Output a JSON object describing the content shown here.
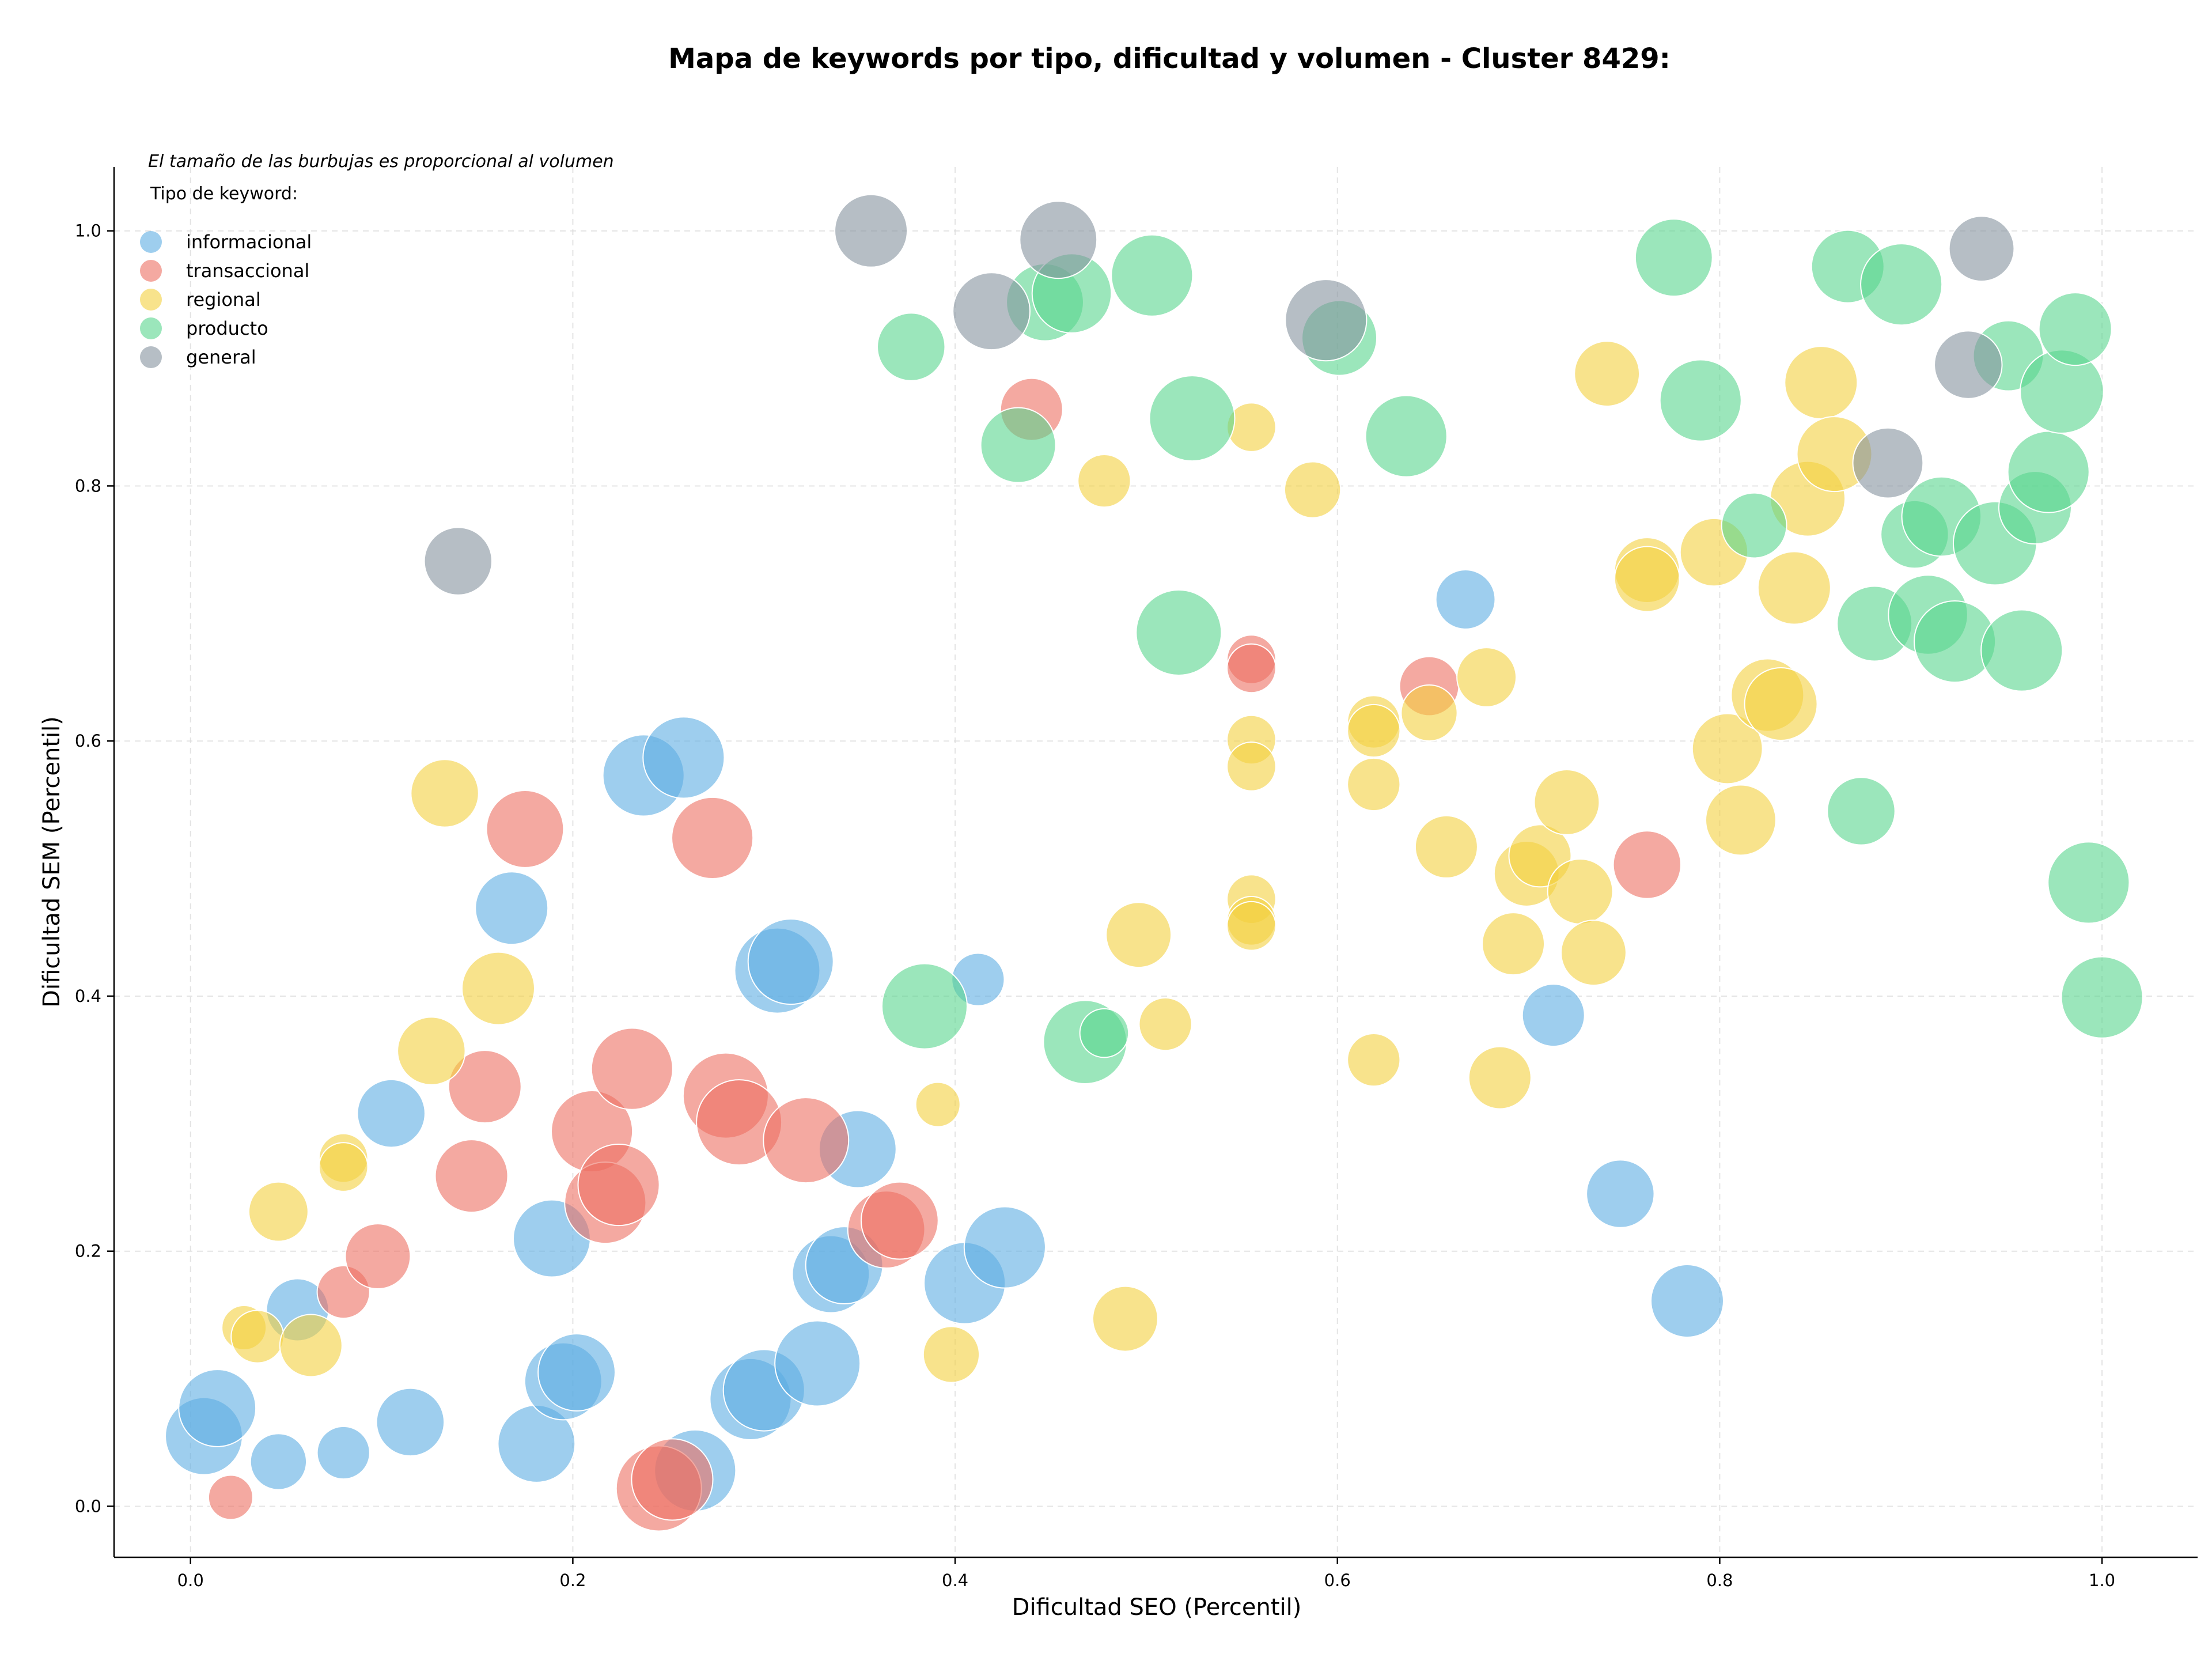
{
  "chart_data": {
    "type": "scatter",
    "title": "Mapa de keywords por tipo, dificultad y volumen - Cluster 8429:",
    "xlabel": "Dificultad SEO (Percentil)",
    "ylabel": "Dificultad SEM (Percentil)",
    "xlim": [
      -0.04,
      1.05
    ],
    "ylim": [
      -0.04,
      1.05
    ],
    "x_ticks": [
      0.0,
      0.2,
      0.4,
      0.6,
      0.8,
      1.0
    ],
    "y_ticks": [
      0.0,
      0.2,
      0.4,
      0.6,
      0.8,
      1.0
    ],
    "x_tick_labels": [
      "0.0",
      "0.2",
      "0.4",
      "0.6",
      "0.8",
      "1.0"
    ],
    "y_tick_labels": [
      "0.0",
      "0.2",
      "0.4",
      "0.6",
      "0.8",
      "1.0"
    ],
    "grid": true,
    "annotation": "El tamaño de las burbujas es proporcional al volumen",
    "legend": {
      "title": "Tipo de keyword:",
      "position": "top-left"
    },
    "size_encoding": "volume (relative, 1-10)",
    "series": [
      {
        "name": "informacional",
        "color": "#5DADE2",
        "points": [
          {
            "x": 0.007,
            "y": 0.055,
            "s": 7
          },
          {
            "x": 0.014,
            "y": 0.077,
            "s": 7
          },
          {
            "x": 0.046,
            "y": 0.035,
            "s": 3
          },
          {
            "x": 0.056,
            "y": 0.154,
            "s": 4
          },
          {
            "x": 0.08,
            "y": 0.042,
            "s": 2.5
          },
          {
            "x": 0.105,
            "y": 0.308,
            "s": 5
          },
          {
            "x": 0.115,
            "y": 0.066,
            "s": 5
          },
          {
            "x": 0.168,
            "y": 0.469,
            "s": 6
          },
          {
            "x": 0.181,
            "y": 0.049,
            "s": 7
          },
          {
            "x": 0.189,
            "y": 0.21,
            "s": 7
          },
          {
            "x": 0.195,
            "y": 0.098,
            "s": 7
          },
          {
            "x": 0.202,
            "y": 0.105,
            "s": 7
          },
          {
            "x": 0.237,
            "y": 0.573,
            "s": 8
          },
          {
            "x": 0.258,
            "y": 0.587,
            "s": 8
          },
          {
            "x": 0.264,
            "y": 0.028,
            "s": 8
          },
          {
            "x": 0.293,
            "y": 0.084,
            "s": 8
          },
          {
            "x": 0.3,
            "y": 0.091,
            "s": 8
          },
          {
            "x": 0.307,
            "y": 0.42,
            "s": 9
          },
          {
            "x": 0.314,
            "y": 0.427,
            "s": 9
          },
          {
            "x": 0.328,
            "y": 0.112,
            "s": 9
          },
          {
            "x": 0.335,
            "y": 0.182,
            "s": 7
          },
          {
            "x": 0.342,
            "y": 0.189,
            "s": 7
          },
          {
            "x": 0.349,
            "y": 0.28,
            "s": 7
          },
          {
            "x": 0.405,
            "y": 0.175,
            "s": 8
          },
          {
            "x": 0.412,
            "y": 0.413,
            "s": 2.5
          },
          {
            "x": 0.426,
            "y": 0.203,
            "s": 8
          },
          {
            "x": 0.667,
            "y": 0.711,
            "s": 3.5
          },
          {
            "x": 0.713,
            "y": 0.385,
            "s": 4
          },
          {
            "x": 0.748,
            "y": 0.245,
            "s": 5
          },
          {
            "x": 0.783,
            "y": 0.161,
            "s": 6
          }
        ]
      },
      {
        "name": "transaccional",
        "color": "#EC7063",
        "points": [
          {
            "x": 0.021,
            "y": 0.007,
            "s": 1.5
          },
          {
            "x": 0.08,
            "y": 0.168,
            "s": 2.5
          },
          {
            "x": 0.098,
            "y": 0.196,
            "s": 4.5
          },
          {
            "x": 0.147,
            "y": 0.259,
            "s": 6
          },
          {
            "x": 0.154,
            "y": 0.329,
            "s": 6
          },
          {
            "x": 0.175,
            "y": 0.531,
            "s": 7
          },
          {
            "x": 0.21,
            "y": 0.294,
            "s": 8
          },
          {
            "x": 0.217,
            "y": 0.238,
            "s": 8
          },
          {
            "x": 0.224,
            "y": 0.252,
            "s": 8
          },
          {
            "x": 0.231,
            "y": 0.343,
            "s": 8
          },
          {
            "x": 0.245,
            "y": 0.014,
            "s": 9
          },
          {
            "x": 0.252,
            "y": 0.021,
            "s": 8
          },
          {
            "x": 0.273,
            "y": 0.524,
            "s": 8
          },
          {
            "x": 0.28,
            "y": 0.322,
            "s": 9
          },
          {
            "x": 0.287,
            "y": 0.301,
            "s": 9
          },
          {
            "x": 0.322,
            "y": 0.287,
            "s": 9
          },
          {
            "x": 0.364,
            "y": 0.217,
            "s": 7
          },
          {
            "x": 0.371,
            "y": 0.224,
            "s": 7
          },
          {
            "x": 0.44,
            "y": 0.86,
            "s": 4
          },
          {
            "x": 0.555,
            "y": 0.664,
            "s": 2
          },
          {
            "x": 0.555,
            "y": 0.657,
            "s": 2
          },
          {
            "x": 0.648,
            "y": 0.643,
            "s": 3.5
          },
          {
            "x": 0.762,
            "y": 0.503,
            "s": 5
          }
        ]
      },
      {
        "name": "regional",
        "color": "#F4D03F",
        "points": [
          {
            "x": 0.028,
            "y": 0.14,
            "s": 1.5
          },
          {
            "x": 0.035,
            "y": 0.133,
            "s": 2.5
          },
          {
            "x": 0.046,
            "y": 0.231,
            "s": 3.5
          },
          {
            "x": 0.063,
            "y": 0.126,
            "s": 4
          },
          {
            "x": 0.08,
            "y": 0.273,
            "s": 2
          },
          {
            "x": 0.08,
            "y": 0.266,
            "s": 2
          },
          {
            "x": 0.126,
            "y": 0.357,
            "s": 5
          },
          {
            "x": 0.133,
            "y": 0.559,
            "s": 5
          },
          {
            "x": 0.161,
            "y": 0.406,
            "s": 6
          },
          {
            "x": 0.391,
            "y": 0.315,
            "s": 1.5
          },
          {
            "x": 0.398,
            "y": 0.119,
            "s": 3
          },
          {
            "x": 0.478,
            "y": 0.804,
            "s": 2.5
          },
          {
            "x": 0.489,
            "y": 0.147,
            "s": 4.5
          },
          {
            "x": 0.496,
            "y": 0.448,
            "s": 4.5
          },
          {
            "x": 0.51,
            "y": 0.378,
            "s": 2.5
          },
          {
            "x": 0.555,
            "y": 0.846,
            "s": 2
          },
          {
            "x": 0.555,
            "y": 0.601,
            "s": 2
          },
          {
            "x": 0.555,
            "y": 0.58,
            "s": 2
          },
          {
            "x": 0.555,
            "y": 0.476,
            "s": 2
          },
          {
            "x": 0.555,
            "y": 0.459,
            "s": 2
          },
          {
            "x": 0.555,
            "y": 0.455,
            "s": 2
          },
          {
            "x": 0.587,
            "y": 0.797,
            "s": 3
          },
          {
            "x": 0.619,
            "y": 0.615,
            "s": 2.5
          },
          {
            "x": 0.619,
            "y": 0.608,
            "s": 2.5
          },
          {
            "x": 0.619,
            "y": 0.566,
            "s": 2.5
          },
          {
            "x": 0.619,
            "y": 0.35,
            "s": 2.5
          },
          {
            "x": 0.648,
            "y": 0.622,
            "s": 3
          },
          {
            "x": 0.657,
            "y": 0.517,
            "s": 4
          },
          {
            "x": 0.678,
            "y": 0.65,
            "s": 3.5
          },
          {
            "x": 0.685,
            "y": 0.336,
            "s": 4
          },
          {
            "x": 0.692,
            "y": 0.441,
            "s": 4
          },
          {
            "x": 0.699,
            "y": 0.496,
            "s": 4.5
          },
          {
            "x": 0.706,
            "y": 0.51,
            "s": 4
          },
          {
            "x": 0.72,
            "y": 0.552,
            "s": 4.5
          },
          {
            "x": 0.727,
            "y": 0.482,
            "s": 4.5
          },
          {
            "x": 0.734,
            "y": 0.434,
            "s": 4.5
          },
          {
            "x": 0.741,
            "y": 0.888,
            "s": 4.5
          },
          {
            "x": 0.762,
            "y": 0.734,
            "s": 4.5
          },
          {
            "x": 0.762,
            "y": 0.727,
            "s": 4.5
          },
          {
            "x": 0.797,
            "y": 0.748,
            "s": 5
          },
          {
            "x": 0.804,
            "y": 0.594,
            "s": 5.5
          },
          {
            "x": 0.811,
            "y": 0.538,
            "s": 5.5
          },
          {
            "x": 0.825,
            "y": 0.636,
            "s": 6
          },
          {
            "x": 0.832,
            "y": 0.629,
            "s": 6
          },
          {
            "x": 0.839,
            "y": 0.72,
            "s": 6
          },
          {
            "x": 0.846,
            "y": 0.79,
            "s": 6.5
          },
          {
            "x": 0.853,
            "y": 0.881,
            "s": 6
          },
          {
            "x": 0.86,
            "y": 0.825,
            "s": 6.5
          }
        ]
      },
      {
        "name": "producto",
        "color": "#58D68D",
        "points": [
          {
            "x": 0.377,
            "y": 0.909,
            "s": 5
          },
          {
            "x": 0.384,
            "y": 0.392,
            "s": 9
          },
          {
            "x": 0.433,
            "y": 0.832,
            "s": 6.5
          },
          {
            "x": 0.447,
            "y": 0.944,
            "s": 7
          },
          {
            "x": 0.461,
            "y": 0.951,
            "s": 7.5
          },
          {
            "x": 0.468,
            "y": 0.364,
            "s": 8.5
          },
          {
            "x": 0.478,
            "y": 0.371,
            "s": 2
          },
          {
            "x": 0.503,
            "y": 0.965,
            "s": 8
          },
          {
            "x": 0.517,
            "y": 0.685,
            "s": 9
          },
          {
            "x": 0.524,
            "y": 0.853,
            "s": 9
          },
          {
            "x": 0.601,
            "y": 0.916,
            "s": 6.5
          },
          {
            "x": 0.636,
            "y": 0.839,
            "s": 8
          },
          {
            "x": 0.776,
            "y": 0.979,
            "s": 7
          },
          {
            "x": 0.79,
            "y": 0.867,
            "s": 8
          },
          {
            "x": 0.818,
            "y": 0.769,
            "s": 4.5
          },
          {
            "x": 0.867,
            "y": 0.972,
            "s": 6
          },
          {
            "x": 0.874,
            "y": 0.545,
            "s": 5
          },
          {
            "x": 0.881,
            "y": 0.692,
            "s": 6.5
          },
          {
            "x": 0.895,
            "y": 0.958,
            "s": 8
          },
          {
            "x": 0.902,
            "y": 0.762,
            "s": 5
          },
          {
            "x": 0.909,
            "y": 0.699,
            "s": 7.5
          },
          {
            "x": 0.916,
            "y": 0.776,
            "s": 7.5
          },
          {
            "x": 0.923,
            "y": 0.678,
            "s": 8
          },
          {
            "x": 0.944,
            "y": 0.755,
            "s": 8.5
          },
          {
            "x": 0.951,
            "y": 0.902,
            "s": 5.5
          },
          {
            "x": 0.958,
            "y": 0.671,
            "s": 8
          },
          {
            "x": 0.965,
            "y": 0.783,
            "s": 6
          },
          {
            "x": 0.972,
            "y": 0.811,
            "s": 8
          },
          {
            "x": 0.979,
            "y": 0.874,
            "s": 8.5
          },
          {
            "x": 0.986,
            "y": 0.923,
            "s": 6
          },
          {
            "x": 0.993,
            "y": 0.489,
            "s": 8
          },
          {
            "x": 1.0,
            "y": 0.399,
            "s": 8
          }
        ]
      },
      {
        "name": "general",
        "color": "#85929E",
        "points": [
          {
            "x": 0.14,
            "y": 0.741,
            "s": 5
          },
          {
            "x": 0.356,
            "y": 1.0,
            "s": 6
          },
          {
            "x": 0.419,
            "y": 0.937,
            "s": 7
          },
          {
            "x": 0.454,
            "y": 0.993,
            "s": 7
          },
          {
            "x": 0.594,
            "y": 0.93,
            "s": 8
          },
          {
            "x": 0.888,
            "y": 0.818,
            "s": 5.5
          },
          {
            "x": 0.93,
            "y": 0.895,
            "s": 5
          },
          {
            "x": 0.937,
            "y": 0.986,
            "s": 4.5
          }
        ]
      }
    ]
  }
}
